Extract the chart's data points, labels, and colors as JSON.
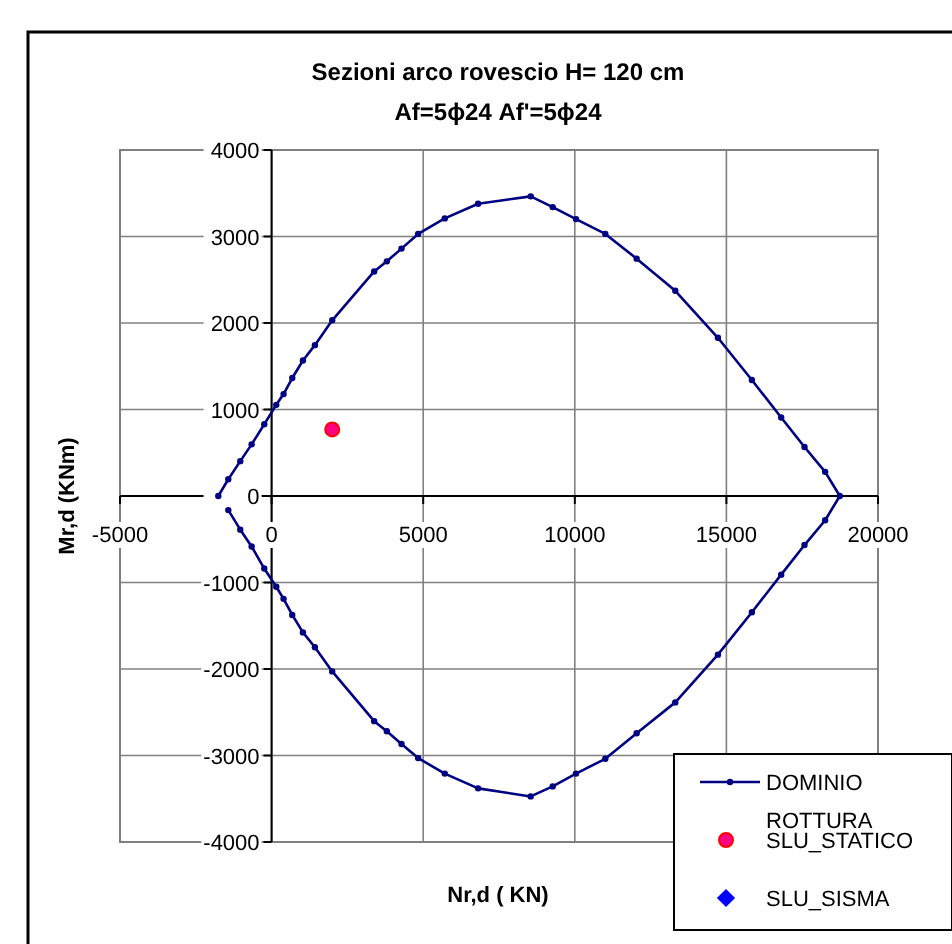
{
  "chart_data": {
    "type": "line",
    "title": "Sezioni arco rovescio   H= 120 cm",
    "subtitle": "Af=5ϕ24  Af'=5ϕ24",
    "xlabel": "Nr,d ( KN)",
    "ylabel": "Mr,d (KNm)",
    "xlim": [
      -5000,
      20000
    ],
    "xticks": [
      -5000,
      0,
      5000,
      10000,
      15000,
      20000
    ],
    "ylim": [
      -4000,
      4000
    ],
    "yticks": [
      -4000,
      -3000,
      -2000,
      -1000,
      0,
      1000,
      2000,
      3000,
      4000
    ],
    "grid": true,
    "legend": "bottom right",
    "series": [
      {
        "name": "DOMINIO",
        "type": "line",
        "color": "#000080",
        "marker": "circle",
        "line_style": "solid",
        "x": [
          -1758,
          -1428,
          -1033,
          -659,
          -242,
          154,
          395,
          681,
          1033,
          1428,
          1999,
          3383,
          3801,
          4284,
          4833,
          5712,
          6811,
          8546,
          9271,
          10040,
          11007,
          12040,
          13314,
          14720,
          15840,
          16807,
          17576,
          18257,
          18740,
          18257,
          17576,
          16807,
          15840,
          14720,
          13314,
          12040,
          11007,
          10040,
          9271,
          8546,
          6811,
          5712,
          4833,
          4284,
          3801,
          3383,
          1999,
          1428,
          1033,
          681,
          395,
          154,
          -242,
          -659,
          -1033,
          -1428
        ],
        "values": [
          0,
          194,
          403,
          597,
          829,
          1054,
          1178,
          1364,
          1566,
          1744,
          2031,
          2596,
          2713,
          2860,
          3030,
          3209,
          3379,
          3464,
          3340,
          3201,
          3030,
          2744,
          2372,
          1829,
          1341,
          907,
          566,
          279,
          0,
          -280,
          -567,
          -909,
          -1344,
          -1834,
          -2386,
          -2743,
          -3038,
          -3209,
          -3357,
          -3473,
          -3380,
          -3209,
          -3030,
          -2867,
          -2720,
          -2603,
          -2028,
          -1748,
          -1577,
          -1375,
          -1189,
          -1049,
          -839,
          -583,
          -389,
          -163
        ]
      },
      {
        "name": "ROTTURA\nSLU_STATICO",
        "type": "scatter",
        "color": "#ff0080",
        "marker": "circle",
        "x": [
          2000
        ],
        "values": [
          770
        ]
      },
      {
        "name": "SLU_SISMA",
        "type": "scatter",
        "color": "#0000ff",
        "marker": "diamond"
      }
    ]
  }
}
